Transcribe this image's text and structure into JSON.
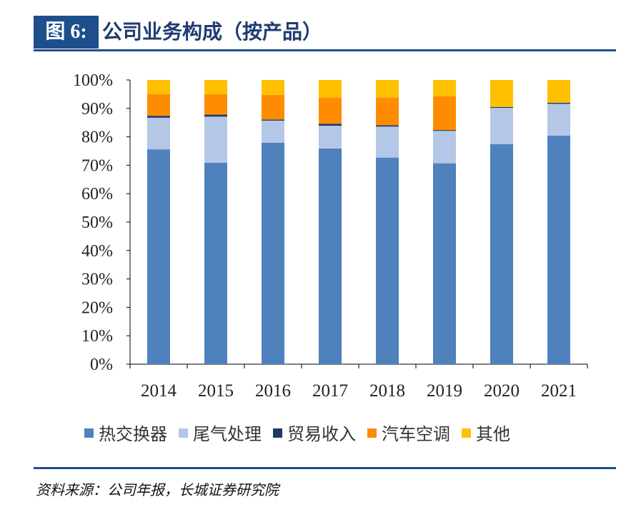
{
  "header": {
    "figure_label": "图 6:",
    "title": "公司业务构成（按产品）"
  },
  "footer": {
    "source": "资料来源：公司年报，长城证券研究院"
  },
  "chart_data": {
    "type": "bar",
    "stacked": true,
    "categories": [
      "2014",
      "2015",
      "2016",
      "2017",
      "2018",
      "2019",
      "2020",
      "2021"
    ],
    "ylim": [
      0,
      100
    ],
    "yticks": [
      "0%",
      "10%",
      "20%",
      "30%",
      "40%",
      "50%",
      "60%",
      "70%",
      "80%",
      "90%",
      "100%"
    ],
    "legend_position": "bottom",
    "grid": false,
    "series": [
      {
        "name": "热交换器",
        "color": "#4f81bd",
        "values": [
          75.6,
          70.9,
          77.9,
          75.9,
          72.7,
          70.7,
          77.4,
          80.4
        ]
      },
      {
        "name": "尾气处理",
        "color": "#b4c7e7",
        "values": [
          11.1,
          16.2,
          7.8,
          8.0,
          10.9,
          11.4,
          12.8,
          11.2
        ]
      },
      {
        "name": "贸易收入",
        "color": "#1f3864",
        "values": [
          0.7,
          0.7,
          0.4,
          0.7,
          0.5,
          0.3,
          0.3,
          0.4
        ]
      },
      {
        "name": "汽车空调",
        "color": "#ff8c00",
        "values": [
          7.6,
          7.2,
          8.7,
          9.2,
          9.7,
          11.9,
          0,
          0
        ]
      },
      {
        "name": "其他",
        "color": "#ffc000",
        "values": [
          5.0,
          5.0,
          5.2,
          6.2,
          6.2,
          5.7,
          9.5,
          8.0
        ]
      }
    ]
  }
}
